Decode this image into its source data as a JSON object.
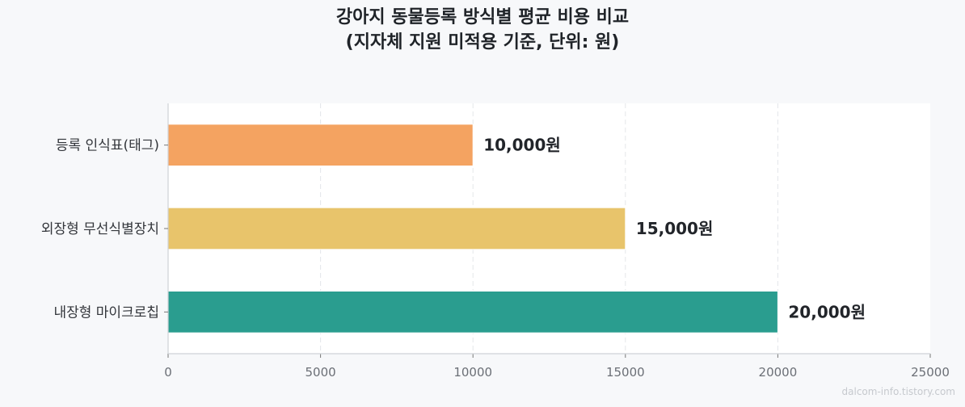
{
  "chart_data": {
    "type": "bar",
    "orientation": "horizontal",
    "title": "강아지 동물등록 방식별 평균 비용 비교",
    "subtitle": "(지자체 지원 미적용 기준, 단위: 원)",
    "categories": [
      "등록 인식표(태그)",
      "외장형 무선식별장치",
      "내장형 마이크로칩"
    ],
    "values": [
      10000,
      15000,
      20000
    ],
    "value_labels": [
      "10,000원",
      "15,000원",
      "20,000원"
    ],
    "colors": [
      "#f4a361",
      "#e8c46b",
      "#2a9d8f"
    ],
    "xticks": [
      "0",
      "5000",
      "10000",
      "15000",
      "20000",
      "25000"
    ],
    "xlim": [
      0,
      25000
    ],
    "xlabel": "",
    "ylabel": "",
    "grid": "vertical dashed"
  },
  "watermark": "dalcom-info.tistory.com"
}
